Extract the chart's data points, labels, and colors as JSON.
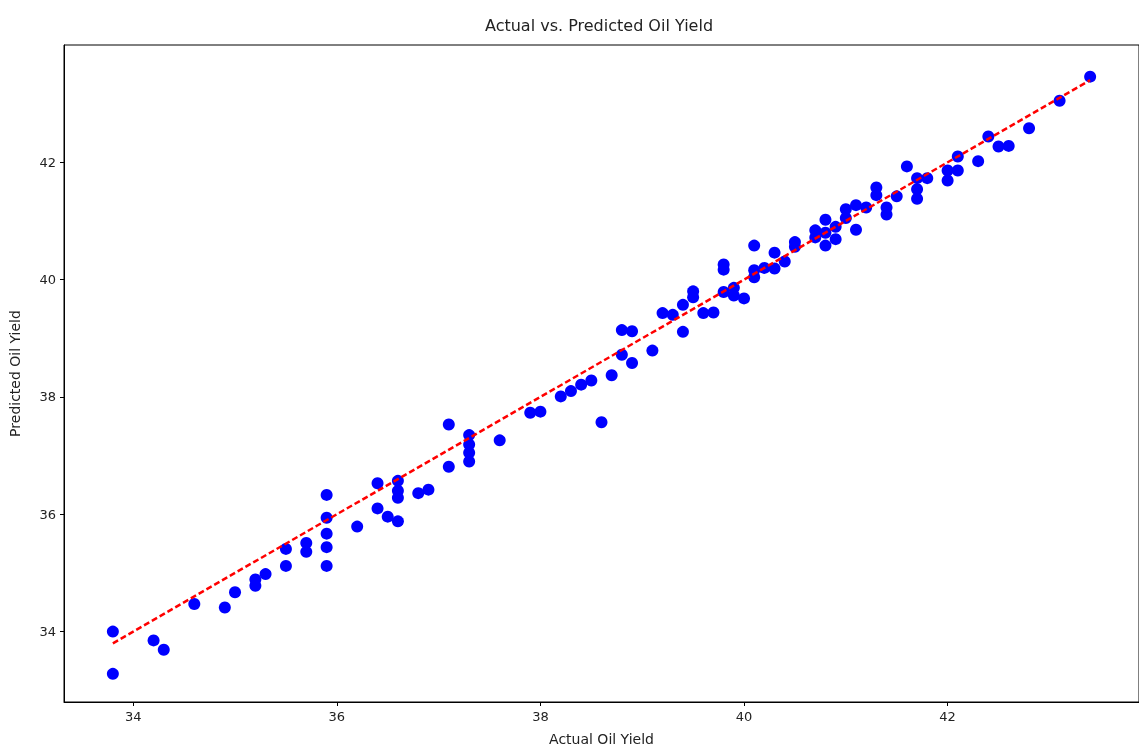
{
  "chart_data": {
    "type": "scatter",
    "title": "Actual vs. Predicted Oil Yield",
    "xlabel": "Actual Oil Yield",
    "ylabel": "Predicted Oil Yield",
    "xlim": [
      33.32,
      43.88
    ],
    "ylim": [
      32.8,
      44.0
    ],
    "xticks": [
      34,
      36,
      38,
      40,
      42
    ],
    "yticks": [
      34,
      36,
      38,
      40,
      42
    ],
    "grid": false,
    "series": [
      {
        "color": "#0000ff",
        "marker": "circle",
        "x": [
          33.8,
          33.8,
          34.2,
          34.3,
          34.6,
          34.9,
          35.0,
          35.2,
          35.2,
          35.3,
          35.5,
          35.5,
          35.7,
          35.7,
          35.9,
          35.9,
          35.9,
          35.9,
          35.9,
          36.2,
          36.4,
          36.4,
          36.5,
          36.6,
          36.6,
          36.6,
          36.6,
          36.8,
          36.9,
          37.1,
          37.1,
          37.3,
          37.3,
          37.3,
          37.3,
          37.6,
          37.9,
          38.0,
          38.2,
          38.3,
          38.4,
          38.5,
          38.6,
          38.7,
          38.8,
          38.8,
          38.9,
          38.9,
          39.1,
          39.2,
          39.3,
          39.4,
          39.4,
          39.5,
          39.5,
          39.6,
          39.7,
          39.8,
          39.8,
          39.8,
          39.9,
          39.9,
          40.0,
          40.1,
          40.1,
          40.1,
          40.2,
          40.3,
          40.3,
          40.4,
          40.5,
          40.5,
          40.7,
          40.7,
          40.8,
          40.8,
          40.8,
          40.9,
          40.9,
          41.0,
          41.0,
          41.1,
          41.1,
          41.2,
          41.3,
          41.3,
          41.4,
          41.4,
          41.5,
          41.6,
          41.7,
          41.7,
          41.7,
          41.8,
          42.0,
          42.0,
          42.1,
          42.1,
          42.3,
          42.4,
          42.5,
          42.6,
          42.8,
          43.1,
          43.4
        ],
        "values": [
          34.0,
          33.28,
          33.85,
          33.69,
          34.47,
          34.41,
          34.67,
          34.78,
          34.89,
          34.98,
          35.12,
          35.41,
          35.51,
          35.36,
          36.33,
          35.94,
          35.67,
          35.44,
          35.12,
          35.79,
          36.53,
          36.1,
          35.96,
          36.57,
          36.4,
          36.28,
          35.88,
          36.36,
          36.42,
          37.53,
          36.81,
          37.35,
          37.19,
          37.05,
          36.9,
          37.26,
          37.73,
          37.75,
          38.01,
          38.1,
          38.21,
          38.28,
          37.57,
          38.37,
          39.14,
          38.72,
          39.12,
          38.58,
          38.79,
          39.43,
          39.4,
          39.57,
          39.11,
          39.8,
          39.7,
          39.43,
          39.44,
          40.26,
          40.17,
          39.79,
          39.86,
          39.73,
          39.68,
          40.58,
          40.16,
          40.04,
          40.2,
          40.46,
          40.19,
          40.31,
          40.64,
          40.56,
          40.84,
          40.72,
          41.02,
          40.8,
          40.58,
          40.9,
          40.69,
          41.2,
          41.05,
          41.27,
          40.85,
          41.23,
          41.57,
          41.44,
          41.23,
          41.11,
          41.42,
          41.93,
          41.73,
          41.54,
          41.38,
          41.73,
          41.86,
          41.69,
          42.1,
          41.86,
          42.02,
          42.44,
          42.27,
          42.28,
          42.58,
          43.05,
          43.46
        ]
      },
      {
        "type": "line",
        "color": "#ff0000",
        "line_style": "dashed",
        "marker": "none",
        "x": [
          33.8,
          43.4
        ],
        "values": [
          33.8,
          43.4
        ]
      }
    ]
  }
}
